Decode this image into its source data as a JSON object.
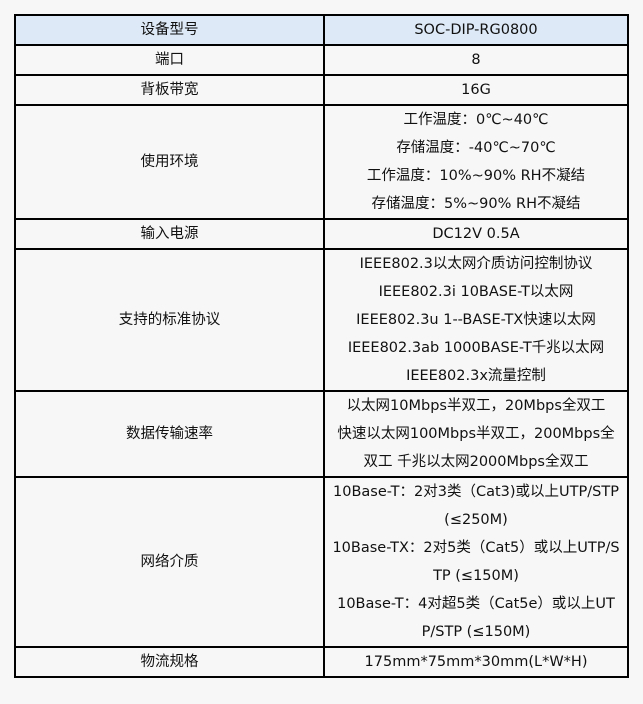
{
  "rows": [
    {
      "label": "设备型号",
      "lines": [
        "SOC-DIP-RG0800"
      ]
    },
    {
      "label": "端口",
      "lines": [
        "8"
      ]
    },
    {
      "label": "背板带宽",
      "lines": [
        "16G"
      ]
    },
    {
      "label": "使用环境",
      "lines": [
        "工作温度：0℃~40℃",
        "存储温度：-40℃~70℃",
        "工作温度：10%~90% RH不凝结",
        "存储温度：5%~90% RH不凝结"
      ]
    },
    {
      "label": "输入电源",
      "lines": [
        "DC12V 0.5A"
      ]
    },
    {
      "label": "支持的标准协议",
      "lines": [
        "IEEE802.3以太网介质访问控制协议",
        "IEEE802.3i 10BASE-T以太网",
        "IEEE802.3u 1--BASE-TX快速以太网",
        "IEEE802.3ab 1000BASE-T千兆以太网",
        "IEEE802.3x流量控制"
      ]
    },
    {
      "label": "数据传输速率",
      "lines": [
        "以太网10Mbps半双工，20Mbps全双工",
        "快速以太网100Mbps半双工，200Mbps全",
        "双工 千兆以太网2000Mbps全双工"
      ]
    },
    {
      "label": "网络介质",
      "lines": [
        "10Base-T：2对3类（Cat3)或以上UTP/STP",
        "(≤250M)",
        "10Base-TX：2对5类（Cat5）或以上UTP/S",
        "TP (≤150M)",
        "10Base-T：4对超5类（Cat5e）或以上UT",
        "P/STP (≤150M)"
      ]
    },
    {
      "label": "物流规格",
      "lines": [
        "175mm*75mm*30mm(L*W*H)"
      ]
    }
  ]
}
